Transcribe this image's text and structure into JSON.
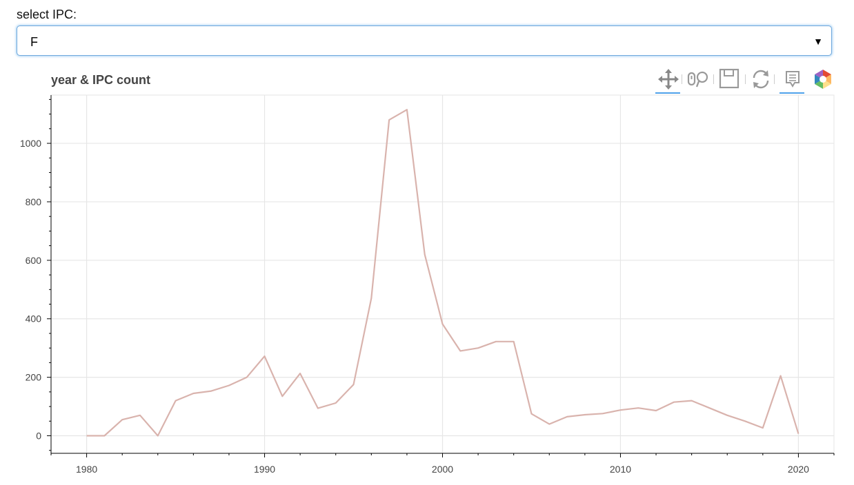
{
  "select": {
    "label": "select IPC:",
    "value": "F"
  },
  "toolbar": {
    "tools": [
      "pan-icon",
      "wheel-zoom-icon",
      "save-icon",
      "reset-icon",
      "hover-icon",
      "bokeh-logo"
    ],
    "active_color": "#4ea1ea"
  },
  "chart_data": {
    "type": "line",
    "title": "year & IPC count",
    "xlabel": "",
    "ylabel": "",
    "x": [
      1980,
      1981,
      1982,
      1983,
      1984,
      1985,
      1986,
      1987,
      1988,
      1989,
      1990,
      1991,
      1992,
      1993,
      1994,
      1995,
      1996,
      1997,
      1998,
      1999,
      2000,
      2001,
      2002,
      2003,
      2004,
      2005,
      2006,
      2007,
      2008,
      2009,
      2010,
      2011,
      2012,
      2013,
      2014,
      2015,
      2016,
      2017,
      2018,
      2019,
      2020
    ],
    "series": [
      {
        "color": "#d9b3ad",
        "values": [
          0,
          0,
          55,
          70,
          0,
          120,
          145,
          153,
          172,
          200,
          272,
          135,
          213,
          94,
          112,
          175,
          470,
          1080,
          1115,
          620,
          382,
          290,
          300,
          322,
          322,
          75,
          40,
          65,
          72,
          76,
          88,
          95,
          86,
          115,
          120,
          95,
          70,
          50,
          27,
          205,
          7
        ]
      }
    ],
    "xlim": [
      1978,
      2022
    ],
    "ylim": [
      -60,
      1165
    ],
    "x_ticks": [
      1980,
      1990,
      2000,
      2010,
      2020
    ],
    "y_ticks": [
      0,
      200,
      400,
      600,
      800,
      1000
    ],
    "grid": true,
    "legend": "none"
  }
}
